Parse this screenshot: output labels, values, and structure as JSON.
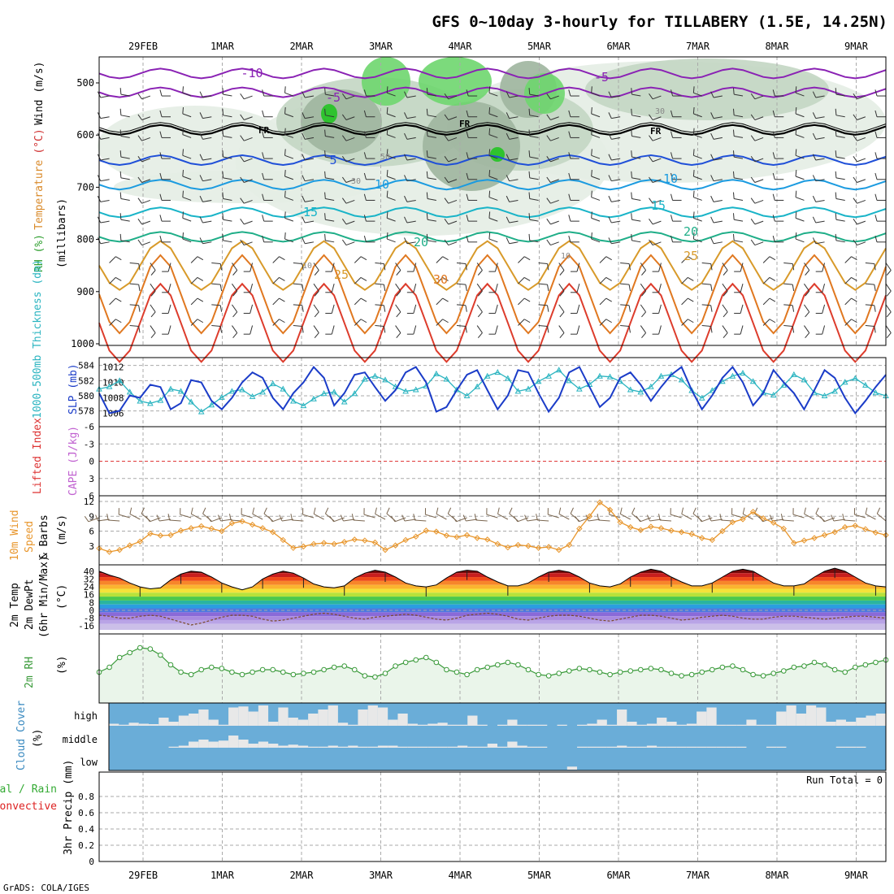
{
  "title": "GFS 0~10day 3-hourly for TILLABERY (1.5E, 14.25N)",
  "credit": "GrADS: COLA/IGES",
  "colors": {
    "frame": "#000000",
    "grid": "#aaaaaa",
    "rh_light": "#e4ede4",
    "rh_mid": "#c3d6c3",
    "rh_dark": "#9fb59f",
    "rh_green": "#6ed66e",
    "rh_bright": "#22c422",
    "thickness": "#2ab4c0",
    "slp": "#1b3cc8",
    "lifted_index_zero": "#e03a3a",
    "wind10": "#e8962c",
    "barb": "#555555",
    "dewpoint": "#b36bd0",
    "rh2m": "#3a9a3a",
    "rh2m_fill": "#eaf5ea",
    "cloud_bg": "#6aadd8",
    "cloud_fill": "#e8e8e8",
    "precip_rain": "#33aa33",
    "precip_conv": "#dd2222"
  },
  "time_labels": [
    "29FEB",
    "1MAR",
    "2MAR",
    "3MAR",
    "4MAR",
    "5MAR",
    "6MAR",
    "7MAR",
    "8MAR",
    "9MAR"
  ],
  "panels": {
    "upper_air": {
      "ylabel": "(millibars)",
      "label_parts": [
        {
          "text": "RH (%)",
          "color": "#2e9e2e"
        },
        {
          "text": "Temperature",
          "color": "#d98a2a"
        },
        {
          "text": "(°C)",
          "color": "#d03030"
        },
        {
          "text": "Wind (m/s)",
          "color": "#000000"
        }
      ],
      "yticks": [
        "500",
        "600",
        "700",
        "800",
        "900",
        "1000"
      ],
      "fr_label": "FR",
      "isotherm_labels": [
        "-10",
        "-5",
        "-5",
        "5",
        "10",
        "10",
        "15",
        "15",
        "20",
        "20",
        "25",
        "25",
        "30"
      ],
      "rh_contour_labels": [
        "50",
        "30",
        "30",
        "10",
        "10"
      ],
      "isotherms": [
        {
          "value": -10,
          "color": "#8a22b4",
          "level": 482
        },
        {
          "value": -5,
          "color": "#8a22b4",
          "level": 518
        },
        {
          "value": 0,
          "color": "#000000",
          "level": 590
        },
        {
          "value": 5,
          "color": "#1f4fd8",
          "level": 648
        },
        {
          "value": 10,
          "color": "#1b9be0",
          "level": 695
        },
        {
          "value": 15,
          "color": "#19b4c8",
          "level": 748
        },
        {
          "value": 20,
          "color": "#1fae88",
          "level": 795
        },
        {
          "value": 25,
          "color": "#d89a2a",
          "level": 850
        },
        {
          "value": 30,
          "color": "#e07820",
          "level": 905
        },
        {
          "value": 35,
          "color": "#dd3c2c",
          "level": 960
        }
      ]
    },
    "thickness_slp": {
      "left_label": "1000-500mb Thickness (dm)",
      "right_label": "SLP (mb)",
      "left_ticks": [
        "584",
        "582",
        "580",
        "578"
      ],
      "right_ticks": [
        "1012",
        "1010",
        "1008",
        "1006"
      ],
      "thickness_dm": [
        580.9,
        581.2,
        582.0,
        580.5,
        579.3,
        579.0,
        579.4,
        580.9,
        580.6,
        579.2,
        577.9,
        578.8,
        579.8,
        580.6,
        580.8,
        579.9,
        580.5,
        581.6,
        580.9,
        579.3,
        578.7,
        579.6,
        580.3,
        580.5,
        579.2,
        580.3,
        582.2,
        582.6,
        582.1,
        581.2,
        580.6,
        580.8,
        581.3,
        582.9,
        582.2,
        580.8,
        580.0,
        581.2,
        582.6,
        583.1,
        582.3,
        580.6,
        580.9,
        581.9,
        582.6,
        583.4,
        582.0,
        580.9,
        581.5,
        582.6,
        582.5,
        581.9,
        580.8,
        580.5,
        581.2,
        582.6,
        582.8,
        582.1,
        580.7,
        579.7,
        580.7,
        581.9,
        582.6,
        583.0,
        581.9,
        580.4,
        580.1,
        581.4,
        582.8,
        582.1,
        580.4,
        580.0,
        580.6,
        581.8,
        582.3,
        581.4,
        580.4,
        580.0
      ],
      "slp_mb": [
        1008.6,
        1006.0,
        1006.3,
        1008.3,
        1008.0,
        1009.7,
        1009.4,
        1006.5,
        1007.3,
        1010.3,
        1010.0,
        1007.6,
        1006.5,
        1008.0,
        1010.0,
        1011.3,
        1010.6,
        1008.0,
        1006.5,
        1008.6,
        1010.0,
        1012.0,
        1010.6,
        1007.0,
        1008.6,
        1011.0,
        1011.3,
        1009.4,
        1007.6,
        1009.0,
        1011.3,
        1012.0,
        1010.0,
        1006.2,
        1006.8,
        1009.0,
        1011.0,
        1011.6,
        1009.0,
        1006.5,
        1008.3,
        1011.6,
        1011.3,
        1008.6,
        1006.2,
        1008.0,
        1011.3,
        1012.0,
        1009.4,
        1006.8,
        1008.0,
        1010.6,
        1011.3,
        1009.7,
        1007.6,
        1009.4,
        1011.0,
        1012.0,
        1009.0,
        1006.5,
        1008.3,
        1010.6,
        1012.0,
        1010.0,
        1007.0,
        1008.6,
        1011.6,
        1010.0,
        1008.6,
        1006.5,
        1009.0,
        1011.6,
        1010.6,
        1008.0,
        1006.0,
        1007.6,
        1009.4,
        1011.0
      ]
    },
    "cape_li": {
      "left_label": "Lifted Index",
      "right_label": "CAPE (J/kg)",
      "yticks": [
        "-6",
        "-3",
        "0",
        "3",
        "6"
      ]
    },
    "wind10m": {
      "label_top": "10m Wind",
      "label_mid": "Speed",
      "label_bot": "& Barbs",
      "unit": "(m/s)",
      "yticks": [
        "12",
        "9",
        "6",
        "3"
      ],
      "speed_ms": [
        2.5,
        1.8,
        2.2,
        3.1,
        3.9,
        5.5,
        5.1,
        5.2,
        6.1,
        6.6,
        7.0,
        6.5,
        6.0,
        7.6,
        8.0,
        7.3,
        6.6,
        5.8,
        4.2,
        2.6,
        2.9,
        3.4,
        3.6,
        3.4,
        3.8,
        4.3,
        4.1,
        3.7,
        2.2,
        3.1,
        4.2,
        4.9,
        6.1,
        5.9,
        5.1,
        4.8,
        5.2,
        4.6,
        4.3,
        3.4,
        2.7,
        3.2,
        3.0,
        2.6,
        2.8,
        2.2,
        3.2,
        6.5,
        9.0,
        11.8,
        10.3,
        7.8,
        6.8,
        6.2,
        6.9,
        6.6,
        6.1,
        5.8,
        5.4,
        4.6,
        4.2,
        6.0,
        7.8,
        8.4,
        9.9,
        8.6,
        7.7,
        6.5,
        3.6,
        4.1,
        4.6,
        5.2,
        5.8,
        6.8,
        7.1,
        6.4,
        5.7,
        5.2
      ]
    },
    "temp2m": {
      "label_top": "2m Temp",
      "label_mid": "2m DewPt",
      "label_bot": "(6hr Min/Max)",
      "unit": "(°C)",
      "yticks": [
        "40",
        "32",
        "24",
        "16",
        "8",
        "0",
        "-8",
        "-16"
      ],
      "temp_c": [
        40,
        36,
        33,
        28,
        24,
        22,
        23,
        31,
        37,
        40,
        39,
        34,
        28,
        24,
        21,
        24,
        32,
        37,
        40,
        38,
        33,
        27,
        24,
        23,
        25,
        33,
        38,
        41,
        39,
        34,
        28,
        25,
        24,
        26,
        33,
        39,
        41,
        40,
        34,
        29,
        25,
        25,
        28,
        34,
        39,
        41,
        39,
        34,
        28,
        25,
        24,
        27,
        34,
        39,
        42,
        40,
        34,
        29,
        25,
        25,
        28,
        34,
        40,
        42,
        40,
        34,
        28,
        25,
        25,
        27,
        34,
        40,
        43,
        40,
        34,
        28,
        25,
        24
      ],
      "dewpt_c": [
        -5,
        -6,
        -8,
        -8,
        -6,
        -5,
        -6,
        -9,
        -12,
        -15,
        -13,
        -10,
        -7,
        -5,
        -5,
        -6,
        -9,
        -11,
        -10,
        -8,
        -6,
        -4,
        -3,
        -4,
        -6,
        -8,
        -9,
        -7,
        -6,
        -5,
        -4,
        -5,
        -7,
        -9,
        -10,
        -8,
        -5,
        -4,
        -3,
        -4,
        -6,
        -9,
        -10,
        -8,
        -6,
        -5,
        -5,
        -6,
        -8,
        -10,
        -11,
        -9,
        -7,
        -5,
        -5,
        -6,
        -8,
        -10,
        -9,
        -7,
        -6,
        -5,
        -6,
        -8,
        -9,
        -9,
        -7,
        -6,
        -6,
        -7,
        -8,
        -9,
        -8,
        -7,
        -6,
        -6,
        -7,
        -8
      ]
    },
    "rh2m": {
      "label": "2m RH",
      "unit": "(%)",
      "rh_pct": [
        22,
        26,
        34,
        38,
        42,
        41,
        36,
        28,
        22,
        20,
        24,
        26,
        25,
        22,
        20,
        22,
        24,
        24,
        22,
        20,
        21,
        22,
        24,
        26,
        27,
        24,
        19,
        18,
        21,
        27,
        30,
        32,
        34,
        30,
        24,
        22,
        20,
        24,
        26,
        28,
        30,
        28,
        24,
        20,
        19,
        21,
        23,
        25,
        24,
        22,
        20,
        22,
        23,
        24,
        25,
        24,
        21,
        19,
        20,
        22,
        24,
        26,
        27,
        24,
        20,
        19,
        21,
        23,
        26,
        27,
        30,
        28,
        24,
        22,
        26,
        28,
        30,
        32
      ],
      "range": [
        0,
        50
      ]
    },
    "cloud": {
      "label": "Cloud Cover",
      "unit": "(%)",
      "levels": [
        "high",
        "middle",
        "low"
      ],
      "high_pct": [
        10,
        5,
        15,
        10,
        8,
        40,
        20,
        50,
        60,
        80,
        30,
        5,
        90,
        95,
        70,
        100,
        20,
        90,
        40,
        30,
        60,
        80,
        100,
        15,
        5,
        80,
        100,
        90,
        30,
        60,
        10,
        5,
        10,
        15,
        5,
        5,
        50,
        5,
        0,
        5,
        30,
        5,
        5,
        5,
        0,
        5,
        0,
        5,
        10,
        30,
        5,
        80,
        20,
        5,
        10,
        40,
        20,
        5,
        10,
        70,
        90,
        5,
        5,
        5,
        30,
        5,
        5,
        70,
        100,
        60,
        100,
        90,
        20,
        30,
        20,
        40,
        50,
        60
      ],
      "mid_pct": [
        0,
        0,
        0,
        0,
        0,
        0,
        5,
        10,
        30,
        40,
        30,
        35,
        60,
        40,
        20,
        30,
        20,
        10,
        15,
        10,
        5,
        5,
        10,
        5,
        10,
        5,
        5,
        10,
        10,
        5,
        5,
        5,
        5,
        5,
        5,
        10,
        5,
        5,
        20,
        5,
        30,
        10,
        5,
        5,
        0,
        0,
        0,
        5,
        5,
        5,
        5,
        10,
        5,
        5,
        10,
        5,
        5,
        5,
        5,
        5,
        5,
        5,
        5,
        5,
        0,
        0,
        5,
        5,
        0,
        0,
        0,
        0,
        0,
        5,
        5,
        5,
        0,
        0
      ],
      "low_pct": [
        0,
        0,
        0,
        0,
        0,
        0,
        0,
        0,
        0,
        0,
        0,
        0,
        0,
        0,
        0,
        0,
        0,
        0,
        0,
        0,
        0,
        0,
        0,
        0,
        0,
        0,
        0,
        0,
        0,
        0,
        0,
        0,
        0,
        0,
        0,
        0,
        0,
        0,
        0,
        0,
        0,
        0,
        0,
        0,
        0,
        0,
        15,
        0,
        0,
        0,
        0,
        0,
        0,
        0,
        0,
        0,
        0,
        0,
        0,
        0,
        0,
        0,
        0,
        0,
        0,
        0,
        0,
        0,
        0,
        0,
        0,
        0,
        0,
        0,
        0,
        0,
        0,
        0
      ]
    },
    "precip": {
      "label_1": "Total / Rain",
      "label_2": "Convective",
      "ylabel": "3hr Precip (mm)",
      "run_total": "Run Total = 0",
      "yticks": [
        "0.8",
        "0.6",
        "0.4",
        "0.2",
        "0"
      ],
      "values_mm": [
        0,
        0,
        0,
        0,
        0,
        0,
        0,
        0,
        0,
        0,
        0,
        0,
        0,
        0,
        0,
        0,
        0,
        0,
        0,
        0,
        0,
        0,
        0,
        0,
        0,
        0,
        0,
        0,
        0,
        0,
        0,
        0,
        0,
        0,
        0,
        0,
        0,
        0,
        0,
        0,
        0,
        0,
        0,
        0,
        0,
        0,
        0,
        0,
        0,
        0,
        0,
        0,
        0,
        0,
        0,
        0,
        0,
        0,
        0,
        0,
        0,
        0,
        0,
        0,
        0,
        0,
        0,
        0,
        0,
        0,
        0,
        0,
        0,
        0,
        0,
        0,
        0,
        0
      ]
    }
  },
  "chart_data": [
    {
      "type": "line",
      "title": "GFS 0~10day 3-hourly for TILLABERY (1.5E, 14.25N)",
      "ylabel": "(millibars)",
      "ylim": [
        1000,
        450
      ],
      "series": [
        {
          "name": "Temperature (°C) isotherms",
          "values": [
            -10,
            -5,
            0,
            5,
            10,
            15,
            20,
            25,
            30,
            35
          ]
        }
      ]
    },
    {
      "type": "line",
      "ylabel": "1000-500mb Thickness (dm) / SLP (mb)",
      "series": [
        {
          "name": "1000-500mb Thickness (dm)"
        },
        {
          "name": "SLP (mb)"
        }
      ]
    },
    {
      "type": "line",
      "ylabel": "Lifted Index / CAPE (J/kg)",
      "ylim": [
        6,
        -6
      ]
    },
    {
      "type": "line",
      "ylabel": "10m Wind Speed & Barbs (m/s)",
      "ylim": [
        0,
        12
      ]
    },
    {
      "type": "area",
      "ylabel": "2m Temp 2m DewPt (6hr Min/Max) (°C)",
      "ylim": [
        -20,
        44
      ]
    },
    {
      "type": "line",
      "ylabel": "2m RH (%)"
    },
    {
      "type": "bar",
      "ylabel": "Cloud Cover (%)",
      "categories": [
        "high",
        "middle",
        "low"
      ]
    },
    {
      "type": "bar",
      "ylabel": "3hr Precip (mm)",
      "ylim": [
        0,
        1
      ]
    }
  ]
}
